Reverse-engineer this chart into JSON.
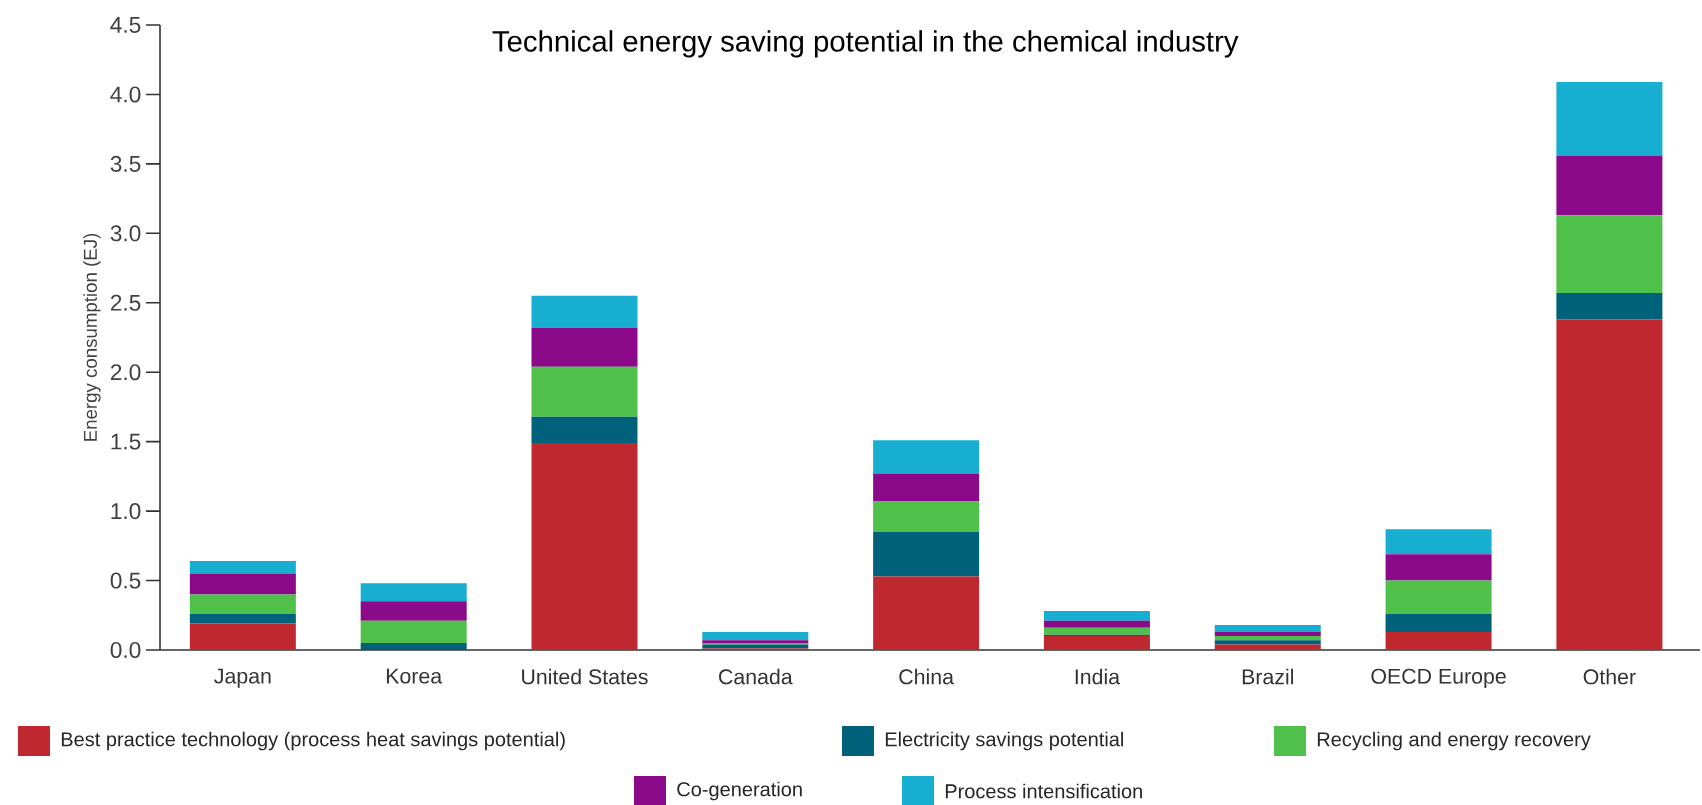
{
  "chart_data": {
    "type": "bar",
    "stacked": true,
    "title": "Technical energy saving potential in the chemical industry",
    "ylabel": "Energy consumption (EJ)",
    "categories": [
      "Japan",
      "Korea",
      "United States",
      "Canada",
      "China",
      "India",
      "Brazil",
      "OECD Europe",
      "Other"
    ],
    "series": [
      {
        "name": "Best practice technology (process heat savings potential)",
        "color": "#c0282f",
        "values": [
          0.19,
          0,
          1.49,
          0.01,
          0.53,
          0.1,
          0.04,
          0.13,
          2.38
        ]
      },
      {
        "name": "Electricity savings potential",
        "color": "#00617b",
        "values": [
          0.07,
          0.05,
          0.19,
          0.03,
          0.32,
          0.01,
          0.03,
          0.13,
          0.19
        ]
      },
      {
        "name": "Recycling and energy recovery",
        "color": "#4fc04a",
        "values": [
          0.14,
          0.16,
          0.36,
          0.01,
          0.22,
          0.05,
          0.03,
          0.24,
          0.56
        ]
      },
      {
        "name": "Co-generation",
        "color": "#8b0a8a",
        "values": [
          0.15,
          0.14,
          0.28,
          0.02,
          0.2,
          0.05,
          0.03,
          0.19,
          0.43
        ]
      },
      {
        "name": "Process intensification",
        "color": "#17aed1",
        "values": [
          0.09,
          0.13,
          0.23,
          0.06,
          0.24,
          0.07,
          0.05,
          0.18,
          0.53
        ]
      }
    ],
    "ylim": [
      0,
      4.5
    ],
    "yticks": [
      {
        "value": 0,
        "label": "0.0"
      },
      {
        "value": 0.5,
        "label": "0.5"
      },
      {
        "value": 1,
        "label": "1.0"
      },
      {
        "value": 1.5,
        "label": "1.5"
      },
      {
        "value": 2,
        "label": "2.0"
      },
      {
        "value": 2.5,
        "label": "2.5"
      },
      {
        "value": 3,
        "label": "3.0"
      },
      {
        "value": 3.5,
        "label": "3.5"
      },
      {
        "value": 4,
        "label": "4.0"
      },
      {
        "value": 4.5,
        "label": "4.5"
      }
    ],
    "legend": "bottom",
    "grid": false
  }
}
